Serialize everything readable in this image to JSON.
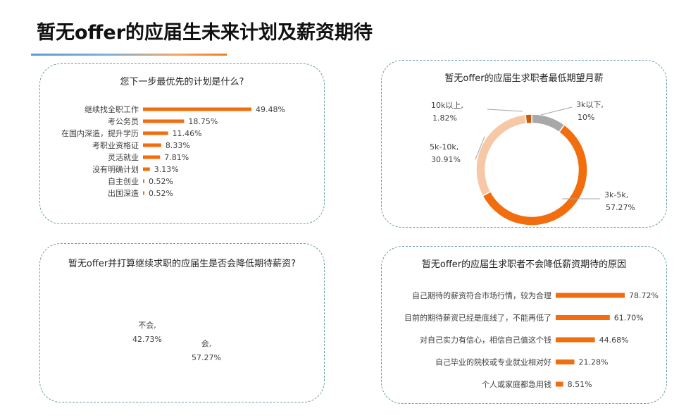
{
  "page": {
    "title": "暂无offer的应届生未来计划及薪资期待"
  },
  "colors": {
    "orange": "#f16d0d",
    "peach": "#f6c8a5",
    "gray": "#a8a8a8",
    "dark_orange": "#c55a11",
    "border": "#6f9fa6"
  },
  "chart_data": [
    {
      "type": "bar",
      "orientation": "horizontal",
      "title": "您下一步最优先的计划是什么?",
      "categories": [
        "继续找全职工作",
        "考公务员",
        "在国内深造，提升学历",
        "考职业资格证",
        "灵活就业",
        "没有明确计划",
        "自主创业",
        "出国深造"
      ],
      "values": [
        49.48,
        18.75,
        11.46,
        8.33,
        7.81,
        3.13,
        0.52,
        0.52
      ],
      "labels": [
        "49.48%",
        "18.75%",
        "11.46%",
        "8.33%",
        "7.81%",
        "3.13%",
        "0.52%",
        "0.52%"
      ]
    },
    {
      "type": "pie",
      "donut": true,
      "title": "暂无offer的应届生求职者最低期望月薪",
      "slices": [
        {
          "name": "3k以下,",
          "value": 10,
          "label": "10%",
          "color": "#a8a8a8"
        },
        {
          "name": "3k-5k,",
          "value": 57.27,
          "label": "57.27%",
          "color": "#f16d0d"
        },
        {
          "name": "5k-10k,",
          "value": 30.91,
          "label": "30.91%",
          "color": "#f6c8a5"
        },
        {
          "name": "10k以上,",
          "value": 1.82,
          "label": "1.82%",
          "color": "#c55a11"
        }
      ]
    },
    {
      "type": "pie",
      "title": "暂无offer并打算继续求职的应届生是否会降低期待薪资?",
      "slices": [
        {
          "name": "会,",
          "value": 57.27,
          "label": "57.27%",
          "color": "#f16d0d"
        },
        {
          "name": "不会,",
          "value": 42.73,
          "label": "42.73%",
          "color": "#f6c8a5"
        }
      ]
    },
    {
      "type": "bar",
      "orientation": "horizontal",
      "title": "暂无offer的应届生求职者不会降低薪资期待的原因",
      "categories": [
        "自己期待的薪资符合市场行情，较为合理",
        "目前的期待薪资已经是底线了，不能再低了",
        "对自己实力有信心，相信自己值这个钱",
        "自己毕业的院校或专业就业相对好",
        "个人或家庭都急用钱"
      ],
      "values": [
        78.72,
        61.7,
        44.68,
        21.28,
        8.51
      ],
      "labels": [
        "78.72%",
        "61.70%",
        "44.68%",
        "21.28%",
        "8.51%"
      ]
    }
  ]
}
